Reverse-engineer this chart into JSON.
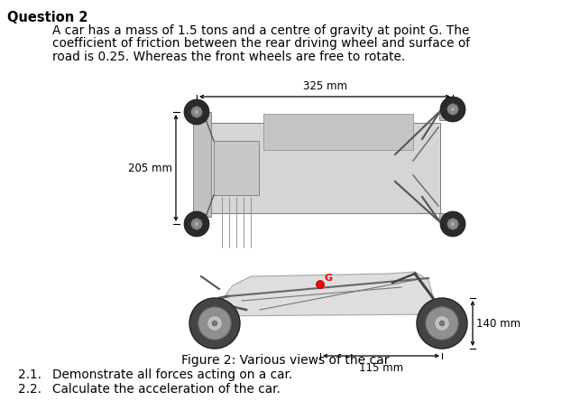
{
  "title": "Question 2",
  "body_text_line1": "A car has a mass of 1.5 tons and a centre of gravity at point G. The",
  "body_text_line2": "coefficient of friction between the rear driving wheel and surface of",
  "body_text_line3": "road is 0.25. Whereas the front wheels are free to rotate.",
  "figure_caption": "Figure 2: Various views of the car",
  "dim_325": "325 mm",
  "dim_205": "205 mm",
  "dim_140": "140 mm",
  "dim_115": "115 mm",
  "q1_num": "2.1.",
  "q1_text": "Demonstrate all forces acting on a car.",
  "q2_num": "2.2.",
  "q2_text": "Calculate the acceleration of the car.",
  "bg_color": "#ffffff",
  "text_color": "#000000",
  "gray1": "#b0b0b0",
  "gray2": "#888888",
  "gray3": "#606060",
  "gray4": "#d8d8d8",
  "gray5": "#404040",
  "title_fontsize": 10.5,
  "body_fontsize": 9.8,
  "caption_fontsize": 10,
  "label_fontsize": 8.5,
  "q_fontsize": 9.8
}
